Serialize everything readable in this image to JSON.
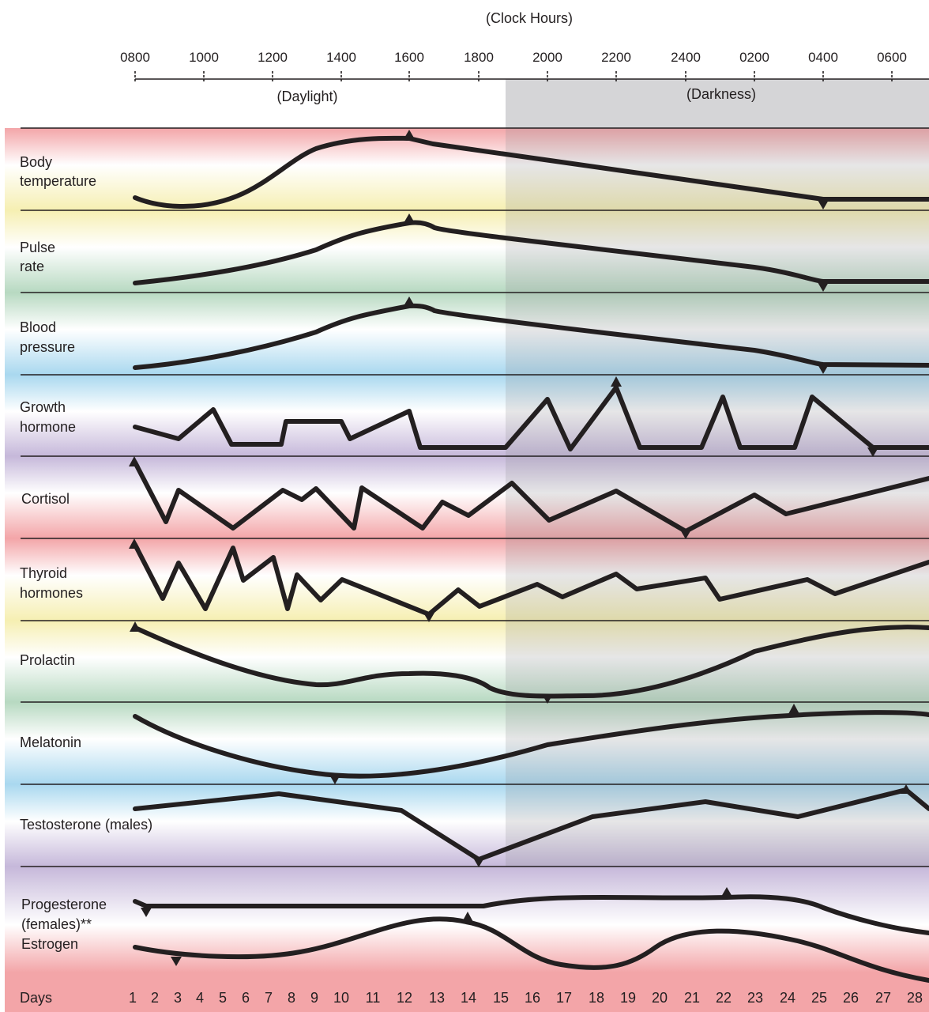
{
  "header": {
    "clock_label": "(Clock Hours)",
    "hours": [
      "0800",
      "1000",
      "1200",
      "1400",
      "1600",
      "1800",
      "2000",
      "2200",
      "2400",
      "0200",
      "0400",
      "0600"
    ],
    "daylight_label": "(Daylight)",
    "darkness_label": "(Darkness)"
  },
  "rows": [
    {
      "lines": [
        "Body",
        "temperature"
      ]
    },
    {
      "lines": [
        "Pulse",
        "rate"
      ]
    },
    {
      "lines": [
        "Blood",
        "pressure"
      ]
    },
    {
      "lines": [
        "Growth",
        "hormone"
      ]
    },
    {
      "lines": [
        "Cortisol"
      ]
    },
    {
      "lines": [
        "Thyroid",
        "hormones"
      ]
    },
    {
      "lines": [
        "Prolactin"
      ]
    },
    {
      "lines": [
        "Melatonin"
      ]
    },
    {
      "lines": [
        "Testosterone (males)"
      ]
    },
    {
      "lines": [
        "Progesterone",
        "(females)**",
        "Estrogen"
      ]
    }
  ],
  "days": {
    "label": "Days",
    "values": [
      "1",
      "2",
      "3",
      "4",
      "5",
      "6",
      "7",
      "8",
      "9",
      "10",
      "11",
      "12",
      "13",
      "14",
      "15",
      "16",
      "17",
      "18",
      "19",
      "20",
      "21",
      "22",
      "23",
      "24",
      "25",
      "26",
      "27",
      "28"
    ]
  },
  "colors": {
    "darkness_band": "#d5d5d7",
    "red": "#f3a5a8",
    "yellow": "#f6efb2",
    "green": "#b7d9c1",
    "blue": "#a9d8ef",
    "purple": "#c6b8da",
    "curve": "#231f20"
  }
}
